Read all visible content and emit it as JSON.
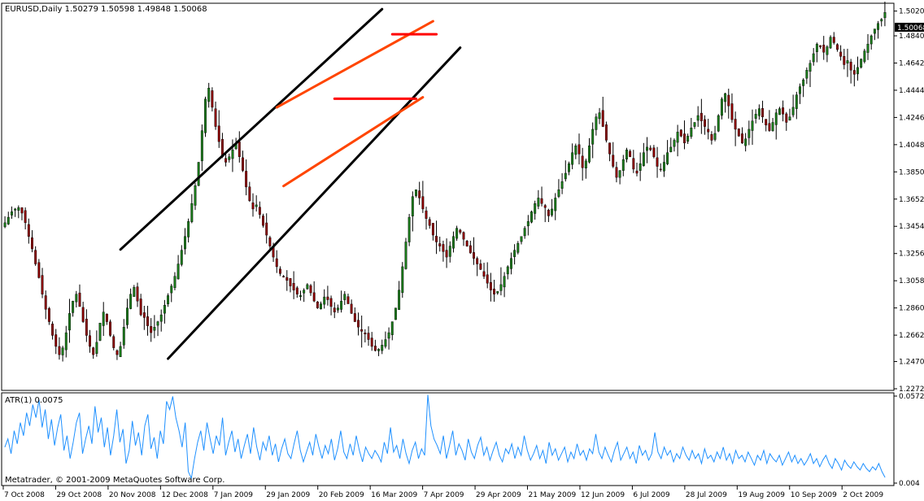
{
  "chart_data": [
    {
      "type": "candlestick",
      "header": "EURUSD,Daily  1.50279 1.50598 1.49848 1.50068",
      "symbol": "EURUSD",
      "timeframe": "Daily",
      "last_ohlc": {
        "open": 1.50279,
        "high": 1.50598,
        "low": 1.49848,
        "close": 1.50068
      },
      "current_price_label": "1.50068",
      "ylim": [
        1.2272,
        1.5065
      ],
      "yticks": [
        "1.50200",
        "1.48400",
        "1.46420",
        "1.44440",
        "1.42460",
        "1.40480",
        "1.38500",
        "1.36520",
        "1.34540",
        "1.32560",
        "1.30580",
        "1.28600",
        "1.26620",
        "1.24700",
        "1.22720"
      ],
      "x_tick_labels": [
        "7 Oct 2008",
        "29 Oct 2008",
        "20 Nov 2008",
        "12 Dec 2008",
        "7 Jan 2009",
        "29 Jan 2009",
        "20 Feb 2009",
        "16 Mar 2009",
        "7 Apr 2009",
        "29 Apr 2009",
        "21 May 2009",
        "12 Jun 2009",
        "6 Jul 2009",
        "28 Jul 2009",
        "19 Aug 2009",
        "10 Sep 2009",
        "2 Oct 2009"
      ],
      "price_path": [
        [
          1.348,
          1.352,
          1.356,
          1.358,
          1.359,
          1.355,
          1.348,
          1.338,
          1.329,
          1.318
        ],
        [
          1.308,
          1.296,
          1.285,
          1.276,
          1.266,
          1.258,
          1.252,
          1.257,
          1.268,
          1.282
        ],
        [
          1.291,
          1.296,
          1.287,
          1.276,
          1.266,
          1.258,
          1.252,
          1.261,
          1.275,
          1.283
        ],
        [
          1.276,
          1.266,
          1.257,
          1.252,
          1.258,
          1.272,
          1.286,
          1.296,
          1.301,
          1.291
        ],
        [
          1.281,
          1.279,
          1.273,
          1.268,
          1.272,
          1.276,
          1.281,
          1.288,
          1.295,
          1.302
        ],
        [
          1.309,
          1.318,
          1.328,
          1.338,
          1.349,
          1.362,
          1.375,
          1.392,
          1.415,
          1.438
        ],
        [
          1.446,
          1.432,
          1.418,
          1.407,
          1.396,
          1.392,
          1.396,
          1.401,
          1.406,
          1.396
        ],
        [
          1.386,
          1.374,
          1.364,
          1.358,
          1.361,
          1.354,
          1.346,
          1.339,
          1.331,
          1.323
        ],
        [
          1.316,
          1.311,
          1.309,
          1.306,
          1.302,
          1.299,
          1.296,
          1.295,
          1.299,
          1.303
        ],
        [
          1.297,
          1.291,
          1.286,
          1.289,
          1.294,
          1.292,
          1.287,
          1.283,
          1.286,
          1.291
        ],
        [
          1.296,
          1.289,
          1.282,
          1.276,
          1.272,
          1.269,
          1.267,
          1.263,
          1.258,
          1.255
        ],
        [
          1.256,
          1.259,
          1.263,
          1.268,
          1.276,
          1.286,
          1.299,
          1.316,
          1.334,
          1.352
        ],
        [
          1.367,
          1.372,
          1.366,
          1.358,
          1.351,
          1.346,
          1.339,
          1.334,
          1.331,
          1.327
        ],
        [
          1.323,
          1.331,
          1.338,
          1.344,
          1.341,
          1.336,
          1.331,
          1.326,
          1.322,
          1.318
        ],
        [
          1.314,
          1.309,
          1.304,
          1.299,
          1.296,
          1.298,
          1.303,
          1.309,
          1.316,
          1.322
        ],
        [
          1.328,
          1.333,
          1.338,
          1.344,
          1.349,
          1.356,
          1.362,
          1.366,
          1.362,
          1.359
        ],
        [
          1.353,
          1.358,
          1.366,
          1.372,
          1.378,
          1.384,
          1.391,
          1.399,
          1.404,
          1.398
        ],
        [
          1.388,
          1.393,
          1.404,
          1.416,
          1.425,
          1.428,
          1.418,
          1.408,
          1.398,
          1.389
        ],
        [
          1.381,
          1.386,
          1.394,
          1.401,
          1.396,
          1.387,
          1.384,
          1.391,
          1.399,
          1.403
        ],
        [
          1.401,
          1.396,
          1.389,
          1.387,
          1.392,
          1.399,
          1.403,
          1.408,
          1.414,
          1.411
        ],
        [
          1.406,
          1.411,
          1.417,
          1.421,
          1.426,
          1.422,
          1.418,
          1.414,
          1.408,
          1.413
        ],
        [
          1.426,
          1.438,
          1.442,
          1.433,
          1.423,
          1.416,
          1.411,
          1.406,
          1.409,
          1.416
        ],
        [
          1.422,
          1.427,
          1.431,
          1.425,
          1.419,
          1.415,
          1.421,
          1.428,
          1.431,
          1.427
        ],
        [
          1.421,
          1.425,
          1.432,
          1.441,
          1.447,
          1.452,
          1.459,
          1.464,
          1.471,
          1.478
        ],
        [
          1.476,
          1.472,
          1.476,
          1.483,
          1.479,
          1.474,
          1.469,
          1.463,
          1.466,
          1.459
        ],
        [
          1.456,
          1.461,
          1.467,
          1.473,
          1.478,
          1.484,
          1.489,
          1.493,
          1.496,
          1.501
        ]
      ],
      "drawn_trendlines": [
        {
          "color": "#000000",
          "from": {
            "candle": 34,
            "price": 1.3285
          },
          "to": {
            "candle": 111,
            "price": 1.5034
          }
        },
        {
          "color": "#000000",
          "from": {
            "candle": 48,
            "price": 1.2491
          },
          "to": {
            "candle": 134,
            "price": 1.4754
          }
        },
        {
          "color": "#ff4500",
          "from": {
            "candle": 80,
            "price": 1.4319
          },
          "to": {
            "candle": 126,
            "price": 1.4946
          }
        },
        {
          "color": "#ff4500",
          "from": {
            "candle": 82,
            "price": 1.3747
          },
          "to": {
            "candle": 123,
            "price": 1.4393
          }
        },
        {
          "color": "#ff0000",
          "from": {
            "candle": 97,
            "price": 1.4382
          },
          "to": {
            "candle": 121,
            "price": 1.4382
          }
        },
        {
          "color": "#ff0000",
          "from": {
            "candle": 114,
            "price": 1.4851
          },
          "to": {
            "candle": 127,
            "price": 1.4851
          }
        }
      ],
      "colors": {
        "up_candle": "#1a7a1a",
        "down_candle": "#8b0000",
        "wick": "#000000"
      }
    },
    {
      "type": "line",
      "label": "ATR(1) 0.0075",
      "indicator": "ATR(1)",
      "last_value": 0.0075,
      "ylim": [
        0.004,
        0.0572
      ],
      "ytick_labels": [
        "0.0572",
        "0.004"
      ],
      "series_color": "#1e90ff",
      "values": [
        0.026,
        0.031,
        0.022,
        0.036,
        0.028,
        0.041,
        0.033,
        0.047,
        0.039,
        0.052,
        0.044,
        0.055,
        0.038,
        0.049,
        0.031,
        0.043,
        0.027,
        0.038,
        0.046,
        0.024,
        0.033,
        0.019,
        0.029,
        0.041,
        0.047,
        0.022,
        0.031,
        0.039,
        0.028,
        0.051,
        0.035,
        0.044,
        0.026,
        0.038,
        0.021,
        0.033,
        0.049,
        0.029,
        0.037,
        0.016,
        0.024,
        0.042,
        0.027,
        0.035,
        0.021,
        0.039,
        0.046,
        0.025,
        0.032,
        0.019,
        0.036,
        0.028,
        0.054,
        0.049,
        0.057,
        0.044,
        0.036,
        0.026,
        0.041,
        0.011,
        0.007,
        0.019,
        0.029,
        0.036,
        0.024,
        0.041,
        0.031,
        0.022,
        0.033,
        0.027,
        0.044,
        0.021,
        0.029,
        0.036,
        0.023,
        0.031,
        0.019,
        0.027,
        0.034,
        0.022,
        0.038,
        0.026,
        0.018,
        0.029,
        0.024,
        0.033,
        0.021,
        0.028,
        0.017,
        0.025,
        0.031,
        0.022,
        0.019,
        0.028,
        0.036,
        0.024,
        0.017,
        0.023,
        0.029,
        0.021,
        0.034,
        0.026,
        0.019,
        0.027,
        0.022,
        0.031,
        0.018,
        0.025,
        0.036,
        0.023,
        0.019,
        0.028,
        0.021,
        0.033,
        0.024,
        0.017,
        0.026,
        0.022,
        0.019,
        0.024,
        0.021,
        0.017,
        0.029,
        0.022,
        0.038,
        0.023,
        0.027,
        0.019,
        0.031,
        0.022,
        0.016,
        0.024,
        0.029,
        0.019,
        0.025,
        0.021,
        0.058,
        0.039,
        0.031,
        0.027,
        0.022,
        0.033,
        0.019,
        0.027,
        0.036,
        0.021,
        0.028,
        0.024,
        0.018,
        0.031,
        0.023,
        0.019,
        0.027,
        0.032,
        0.021,
        0.026,
        0.018,
        0.024,
        0.029,
        0.021,
        0.017,
        0.025,
        0.022,
        0.028,
        0.019,
        0.026,
        0.021,
        0.033,
        0.024,
        0.018,
        0.022,
        0.027,
        0.019,
        0.024,
        0.016,
        0.029,
        0.021,
        0.025,
        0.018,
        0.022,
        0.026,
        0.017,
        0.023,
        0.019,
        0.028,
        0.021,
        0.024,
        0.018,
        0.025,
        0.022,
        0.034,
        0.023,
        0.019,
        0.026,
        0.021,
        0.017,
        0.024,
        0.029,
        0.018,
        0.022,
        0.026,
        0.019,
        0.023,
        0.016,
        0.027,
        0.021,
        0.024,
        0.018,
        0.022,
        0.035,
        0.023,
        0.019,
        0.026,
        0.021,
        0.024,
        0.017,
        0.022,
        0.019,
        0.026,
        0.021,
        0.018,
        0.024,
        0.019,
        0.022,
        0.016,
        0.025,
        0.019,
        0.021,
        0.017,
        0.023,
        0.019,
        0.026,
        0.018,
        0.022,
        0.016,
        0.024,
        0.019,
        0.021,
        0.017,
        0.023,
        0.019,
        0.015,
        0.021,
        0.018,
        0.024,
        0.016,
        0.022,
        0.019,
        0.017,
        0.021,
        0.015,
        0.019,
        0.023,
        0.017,
        0.021,
        0.016,
        0.019,
        0.015,
        0.018,
        0.022,
        0.016,
        0.019,
        0.014,
        0.018,
        0.021,
        0.016,
        0.013,
        0.019,
        0.016,
        0.012,
        0.018,
        0.015,
        0.013,
        0.017,
        0.014,
        0.012,
        0.016,
        0.013,
        0.011,
        0.014,
        0.012,
        0.016,
        0.011,
        0.0075
      ]
    }
  ],
  "footer_copyright": "Metatrader, © 2001-2009 MetaQuotes Software Corp."
}
